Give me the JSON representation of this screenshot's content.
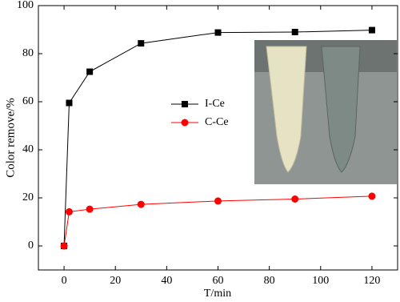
{
  "chart_data": {
    "type": "line",
    "x_label": "T/min",
    "y_label": "Color remove/%",
    "series": [
      {
        "name": "I-Ce",
        "color": "#000000",
        "marker": "square",
        "x": [
          0,
          2,
          10,
          30,
          60,
          90,
          120
        ],
        "values": [
          0,
          59.5,
          72.5,
          84.3,
          88.8,
          89,
          89.8
        ]
      },
      {
        "name": "C-Ce",
        "color": "#ff0000",
        "marker": "circle",
        "x": [
          0,
          2,
          10,
          30,
          60,
          90,
          120
        ],
        "values": [
          0,
          14.2,
          15.3,
          17.3,
          18.7,
          19.5,
          20.7
        ]
      }
    ],
    "xlim": [
      -10,
      130
    ],
    "xticks": [
      0,
      20,
      40,
      60,
      80,
      100,
      120
    ],
    "ylim": [
      -10,
      100
    ],
    "yticks": [
      0,
      20,
      40,
      60,
      80,
      100
    ]
  }
}
